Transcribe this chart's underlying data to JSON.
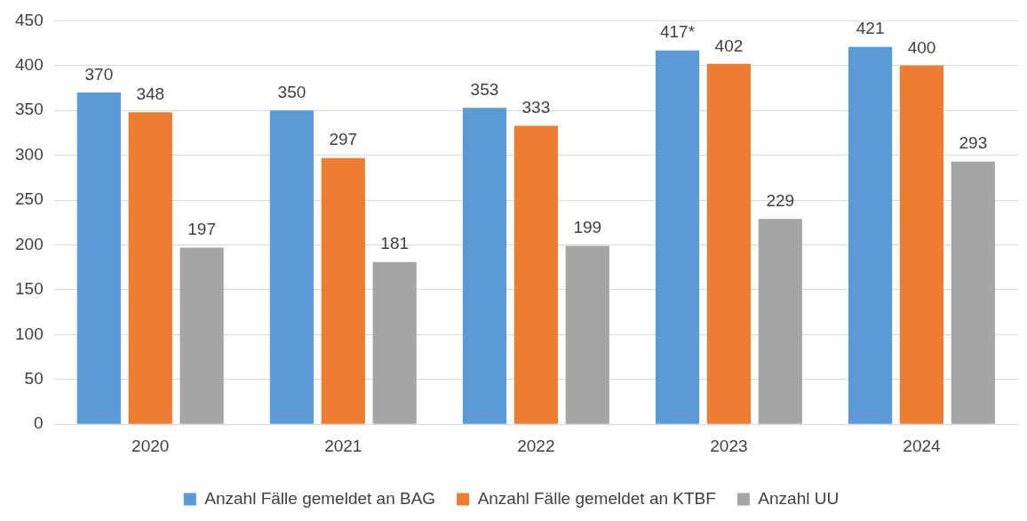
{
  "chart_data": {
    "type": "bar",
    "categories": [
      "2020",
      "2021",
      "2022",
      "2023",
      "2024"
    ],
    "series": [
      {
        "name": "Anzahl Fälle gemeldet an BAG",
        "color": "#5b9bd5",
        "values": [
          370,
          350,
          353,
          417,
          421
        ],
        "value_labels": [
          "370",
          "350",
          "353",
          "417*",
          "421"
        ]
      },
      {
        "name": "Anzahl Fälle gemeldet an KTBF",
        "color": "#ed7d31",
        "values": [
          348,
          297,
          333,
          402,
          400
        ],
        "value_labels": [
          "348",
          "297",
          "333",
          "402",
          "400"
        ]
      },
      {
        "name": "Anzahl UU",
        "color": "#a5a5a5",
        "values": [
          197,
          181,
          199,
          229,
          293
        ],
        "value_labels": [
          "197",
          "181",
          "199",
          "229",
          "293"
        ]
      }
    ],
    "ylim": [
      0,
      450
    ],
    "yticks": [
      0,
      50,
      100,
      150,
      200,
      250,
      300,
      350,
      400,
      450
    ],
    "grid": "y",
    "legend": "bottom"
  }
}
